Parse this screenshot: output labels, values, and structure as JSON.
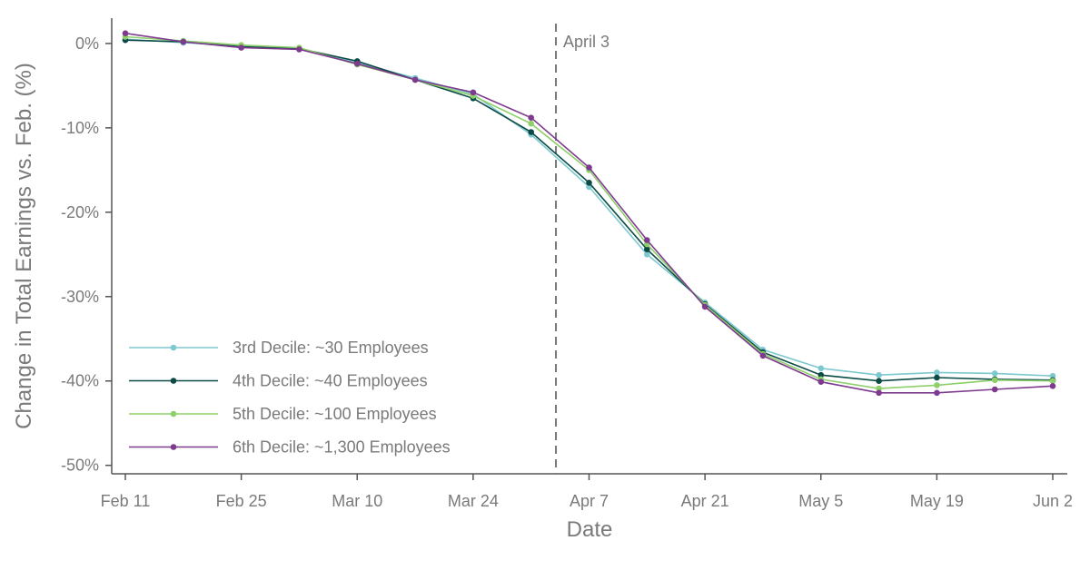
{
  "chart_data": {
    "type": "line",
    "title": "",
    "xlabel": "Date",
    "ylabel": "Change in Total Earnings vs. Feb. (%)",
    "x": [
      "2020-02-11",
      "2020-02-18",
      "2020-02-25",
      "2020-03-03",
      "2020-03-10",
      "2020-03-17",
      "2020-03-24",
      "2020-03-31",
      "2020-04-07",
      "2020-04-14",
      "2020-04-21",
      "2020-04-28",
      "2020-05-05",
      "2020-05-12",
      "2020-05-19",
      "2020-05-26",
      "2020-06-02"
    ],
    "xlim": [
      "2020-02-11",
      "2020-06-02"
    ],
    "x_ticks": [
      {
        "date": "2020-02-11",
        "label": "Feb 11"
      },
      {
        "date": "2020-02-25",
        "label": "Feb 25"
      },
      {
        "date": "2020-03-10",
        "label": "Mar 10"
      },
      {
        "date": "2020-03-24",
        "label": "Mar 24"
      },
      {
        "date": "2020-04-07",
        "label": "Apr 7"
      },
      {
        "date": "2020-04-21",
        "label": "Apr 21"
      },
      {
        "date": "2020-05-05",
        "label": "May 5"
      },
      {
        "date": "2020-05-19",
        "label": "May 19"
      },
      {
        "date": "2020-06-02",
        "label": "Jun 2"
      }
    ],
    "ylim": [
      -51,
      3
    ],
    "y_ticks": [
      {
        "value": 0,
        "label": "0%"
      },
      {
        "value": -10,
        "label": "-10%"
      },
      {
        "value": -20,
        "label": "-20%"
      },
      {
        "value": -30,
        "label": "-30%"
      },
      {
        "value": -40,
        "label": "-40%"
      },
      {
        "value": -50,
        "label": "-50%"
      }
    ],
    "grid": false,
    "legend_position": "bottom-left",
    "annotations": [
      {
        "type": "vline",
        "x": "2020-04-03",
        "label": "April 3",
        "style": "dashed"
      }
    ],
    "series": [
      {
        "name": "3rd Decile: ~30 Employees",
        "color": "#7ec8d0",
        "values": [
          0.5,
          0.1,
          -0.3,
          -0.6,
          -2.3,
          -4.1,
          -6.0,
          -10.8,
          -17.0,
          -25.0,
          -30.7,
          -36.3,
          -38.5,
          -39.3,
          -39.0,
          -39.1,
          -39.4
        ]
      },
      {
        "name": "4th Decile: ~40 Employees",
        "color": "#0b4a45",
        "values": [
          0.4,
          0.2,
          -0.4,
          -0.6,
          -2.1,
          -4.3,
          -6.5,
          -10.5,
          -16.5,
          -24.4,
          -30.9,
          -36.6,
          -39.3,
          -40.0,
          -39.6,
          -39.8,
          -39.9
        ]
      },
      {
        "name": "5th Decile: ~100 Employees",
        "color": "#8ecf6a",
        "values": [
          0.8,
          0.3,
          -0.2,
          -0.5,
          -2.5,
          -4.3,
          -6.2,
          -9.5,
          -15.0,
          -23.8,
          -31.0,
          -36.8,
          -39.8,
          -40.9,
          -40.5,
          -39.9,
          -40.0
        ]
      },
      {
        "name": "6th Decile: ~1,300 Employees",
        "color": "#7e3a8e",
        "values": [
          1.2,
          0.2,
          -0.5,
          -0.7,
          -2.4,
          -4.3,
          -5.8,
          -8.8,
          -14.7,
          -23.3,
          -31.2,
          -37.0,
          -40.1,
          -41.4,
          -41.4,
          -41.0,
          -40.6
        ]
      }
    ]
  }
}
